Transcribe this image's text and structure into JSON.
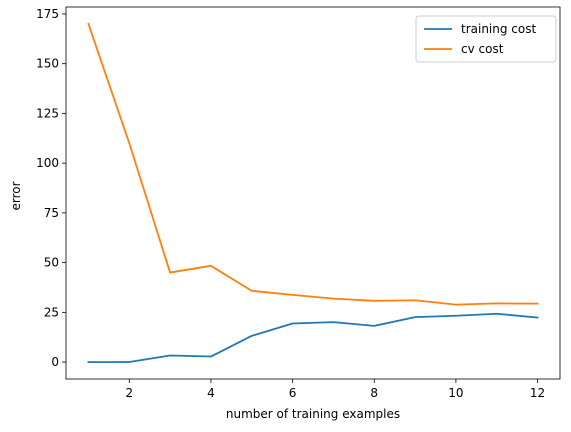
{
  "chart_data": {
    "type": "line",
    "xlabel": "number of training examples",
    "ylabel": "error",
    "xlim": [
      0.45,
      12.55
    ],
    "ylim": [
      -8.5,
      178.5
    ],
    "x_ticks": [
      2,
      4,
      6,
      8,
      10,
      12
    ],
    "y_ticks": [
      0,
      25,
      50,
      75,
      100,
      125,
      150,
      175
    ],
    "x": [
      1,
      2,
      3,
      4,
      5,
      6,
      7,
      8,
      9,
      10,
      11,
      12
    ],
    "series": [
      {
        "name": "training cost",
        "color": "#1f77b4",
        "values": [
          0.0,
          0.05,
          3.3,
          2.8,
          13.2,
          19.4,
          20.1,
          18.2,
          22.6,
          23.3,
          24.3,
          22.4
        ]
      },
      {
        "name": "cv cost",
        "color": "#ff7f0e",
        "values": [
          170.0,
          110.0,
          45.0,
          48.4,
          35.8,
          33.8,
          31.9,
          30.8,
          31.1,
          28.9,
          29.5,
          29.4
        ]
      }
    ],
    "grid": false,
    "legend_position": "top-right"
  }
}
